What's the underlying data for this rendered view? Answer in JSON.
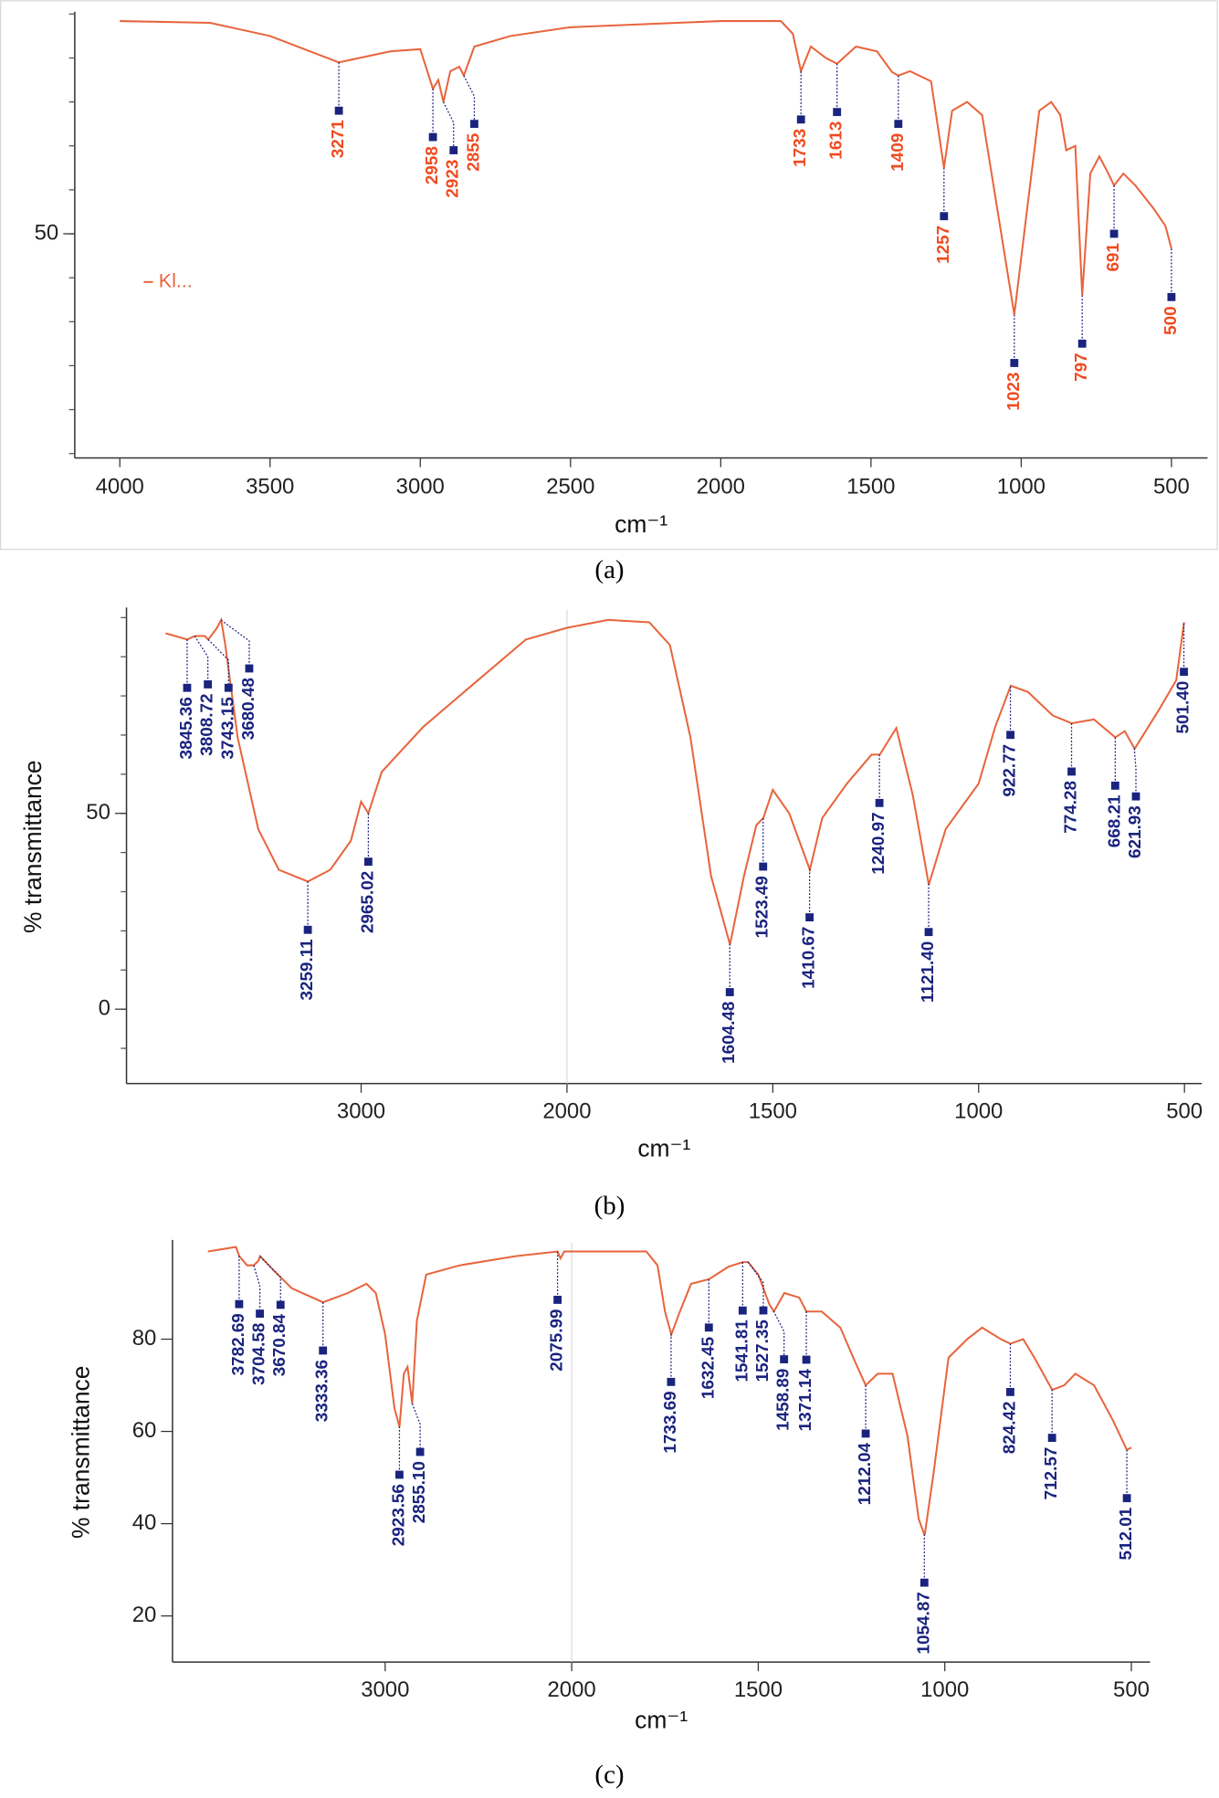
{
  "chart_data": [
    {
      "type": "line",
      "caption": "(a)",
      "x_label": "cm⁻¹",
      "x": [
        4000,
        3700,
        3500,
        3271,
        3100,
        3000,
        2958,
        2940,
        2923,
        2900,
        2870,
        2855,
        2820,
        2700,
        2500,
        2000,
        1800,
        1760,
        1733,
        1700,
        1650,
        1613,
        1550,
        1480,
        1430,
        1409,
        1370,
        1300,
        1257,
        1230,
        1180,
        1130,
        1080,
        1023,
        980,
        940,
        900,
        870,
        850,
        820,
        797,
        770,
        740,
        710,
        691,
        660,
        620,
        560,
        520,
        500
      ],
      "series": [
        {
          "name": "Kl...",
          "color": "#e8643c",
          "values": [
            98.4,
            98,
            95,
            89,
            91.5,
            92,
            83,
            85,
            80,
            87,
            88,
            86,
            92.6,
            95,
            97,
            98.4,
            98.4,
            95.5,
            87,
            92.6,
            90,
            88.7,
            92.6,
            91.5,
            86.8,
            86,
            87,
            84.7,
            65,
            78,
            80,
            77,
            55.8,
            31.6,
            55.8,
            78,
            80,
            77,
            69,
            70,
            36,
            63.7,
            67.6,
            63.7,
            61,
            63.7,
            61,
            55.8,
            51.8,
            46.6
          ]
        }
      ],
      "legend": "middle-left",
      "xlim": [
        4150,
        380
      ],
      "xticks": [
        4000,
        3500,
        3000,
        2500,
        2000,
        1500,
        1000,
        500
      ],
      "ylim": [
        -1,
        100
      ],
      "yticks": [
        50
      ],
      "minor_yticks": [
        0,
        10,
        20,
        30,
        40,
        50,
        60,
        70,
        80,
        90,
        100
      ],
      "peak_label_color": "#f04a1f",
      "peak_marker_color": "#1a237e",
      "peaks": [
        {
          "value": 3271,
          "label": "3271"
        },
        {
          "value": 2958,
          "label": "2958"
        },
        {
          "value": 2923,
          "label": "2923"
        },
        {
          "value": 2855,
          "label": "2855"
        },
        {
          "value": 1733,
          "label": "1733"
        },
        {
          "value": 1613,
          "label": "1613"
        },
        {
          "value": 1409,
          "label": "1409"
        },
        {
          "value": 1257,
          "label": "1257"
        },
        {
          "value": 1023,
          "label": "1023"
        },
        {
          "value": 797,
          "label": "797"
        },
        {
          "value": 691,
          "label": "691"
        },
        {
          "value": 500,
          "label": "500"
        }
      ]
    },
    {
      "type": "line",
      "caption": "(b)",
      "x_label": "cm⁻¹",
      "y_label": "% transmittance",
      "x": [
        3950,
        3845,
        3808,
        3760,
        3743,
        3700,
        3680,
        3660,
        3600,
        3500,
        3400,
        3259,
        3150,
        3050,
        3000,
        2965,
        2900,
        2700,
        2500,
        2200,
        2000,
        1900,
        1800,
        1750,
        1700,
        1650,
        1604,
        1570,
        1540,
        1523,
        1500,
        1460,
        1410,
        1380,
        1320,
        1260,
        1240,
        1200,
        1160,
        1121,
        1080,
        1000,
        960,
        922,
        880,
        820,
        774,
        720,
        668,
        645,
        621,
        560,
        520,
        501
      ],
      "series": [
        {
          "color": "#e8643c",
          "values": [
            96,
            94.4,
            95.3,
            95.3,
            94.4,
            97.4,
            99.4,
            93,
            69.4,
            46,
            35.6,
            32.6,
            35.6,
            43,
            53,
            50,
            60.6,
            72,
            81,
            94.4,
            97.4,
            99.4,
            98.8,
            93,
            69.4,
            34,
            16.5,
            34,
            47,
            48.8,
            56,
            50,
            35.6,
            48.8,
            57.6,
            65,
            65,
            71.8,
            54.7,
            31.8,
            46,
            57.6,
            72,
            82.6,
            81,
            75,
            73,
            74,
            69.4,
            71,
            66.5,
            76.8,
            84,
            98.8
          ]
        }
      ],
      "xlim": [
        4140,
        458
      ],
      "xticks": [
        3000,
        2000,
        1500,
        1000,
        500
      ],
      "break_line": 2000,
      "ylim": [
        -19,
        102
      ],
      "yticks": [
        0,
        50
      ],
      "minor_yticks": [
        -10,
        0,
        10,
        20,
        30,
        40,
        50,
        60,
        70,
        80,
        90,
        100
      ],
      "peak_label_color": "#1a237e",
      "peak_marker_color": "#1a237e",
      "peaks": [
        {
          "value": 3845.36,
          "label": "3845.36"
        },
        {
          "value": 3808.72,
          "label": "3808.72"
        },
        {
          "value": 3743.15,
          "label": "3743.15"
        },
        {
          "value": 3680.48,
          "label": "3680.48"
        },
        {
          "value": 3259.11,
          "label": "3259.11"
        },
        {
          "value": 2965.02,
          "label": "2965.02"
        },
        {
          "value": 1604.48,
          "label": "1604.48"
        },
        {
          "value": 1523.49,
          "label": "1523.49"
        },
        {
          "value": 1410.67,
          "label": "1410.67"
        },
        {
          "value": 1240.97,
          "label": "1240.97"
        },
        {
          "value": 1121.4,
          "label": "1121.40"
        },
        {
          "value": 922.77,
          "label": "922.77"
        },
        {
          "value": 774.28,
          "label": "774.28"
        },
        {
          "value": 668.21,
          "label": "668.21"
        },
        {
          "value": 621.93,
          "label": "621.93"
        },
        {
          "value": 501.4,
          "label": "501.40"
        }
      ]
    },
    {
      "type": "line",
      "caption": "(c)",
      "x_label": "cm⁻¹",
      "y_label": "% transmittance",
      "x": [
        3950,
        3800,
        3782,
        3740,
        3704,
        3680,
        3670,
        3600,
        3500,
        3333,
        3200,
        3100,
        3050,
        3000,
        2950,
        2923,
        2900,
        2880,
        2855,
        2830,
        2780,
        2600,
        2300,
        2076,
        2060,
        2040,
        1800,
        1770,
        1750,
        1733,
        1710,
        1680,
        1632,
        1580,
        1541,
        1527,
        1500,
        1470,
        1458,
        1430,
        1390,
        1371,
        1330,
        1280,
        1240,
        1212,
        1180,
        1140,
        1100,
        1070,
        1054,
        1030,
        990,
        940,
        900,
        850,
        824,
        790,
        760,
        712,
        680,
        650,
        600,
        550,
        512,
        500
      ],
      "series": [
        {
          "color": "#e8643c",
          "values": [
            99,
            100,
            98,
            96,
            96,
            97,
            98,
            95,
            91,
            88,
            90,
            92,
            90,
            81,
            65,
            61,
            72.5,
            74,
            66,
            84,
            94,
            96,
            98,
            99,
            97.5,
            99,
            99,
            96,
            86,
            81,
            86,
            92,
            93,
            95.7,
            96.7,
            96.7,
            94,
            87.5,
            86,
            90,
            89,
            86,
            86,
            82.5,
            75,
            70,
            72.5,
            72.5,
            59,
            41,
            37.5,
            51,
            76,
            80,
            82.5,
            80,
            79,
            80,
            76,
            69,
            70,
            72.5,
            70,
            62.5,
            56,
            56.5
          ]
        }
      ],
      "xlim": [
        4140,
        450
      ],
      "xticks": [
        3000,
        2000,
        1500,
        1000,
        500
      ],
      "break_line": 2000,
      "ylim": [
        10,
        101
      ],
      "yticks": [
        20,
        40,
        60,
        80
      ],
      "peak_label_color": "#1a237e",
      "peak_marker_color": "#1a237e",
      "peaks": [
        {
          "value": 3782.69,
          "label": "3782.69"
        },
        {
          "value": 3704.58,
          "label": "3704.58"
        },
        {
          "value": 3670.84,
          "label": "3670.84"
        },
        {
          "value": 3333.36,
          "label": "3333.36"
        },
        {
          "value": 2923.56,
          "label": "2923.56"
        },
        {
          "value": 2855.1,
          "label": "2855.10"
        },
        {
          "value": 2075.99,
          "label": "2075.99"
        },
        {
          "value": 1733.69,
          "label": "1733.69"
        },
        {
          "value": 1632.45,
          "label": "1632.45"
        },
        {
          "value": 1541.81,
          "label": "1541.81"
        },
        {
          "value": 1527.35,
          "label": "1527.35"
        },
        {
          "value": 1458.89,
          "label": "1458.89"
        },
        {
          "value": 1371.14,
          "label": "1371.14"
        },
        {
          "value": 1212.04,
          "label": "1212.04"
        },
        {
          "value": 1054.87,
          "label": "1054.87"
        },
        {
          "value": 824.42,
          "label": "824.42"
        },
        {
          "value": 712.57,
          "label": "712.57"
        },
        {
          "value": 512.01,
          "label": "512.01"
        }
      ]
    }
  ]
}
